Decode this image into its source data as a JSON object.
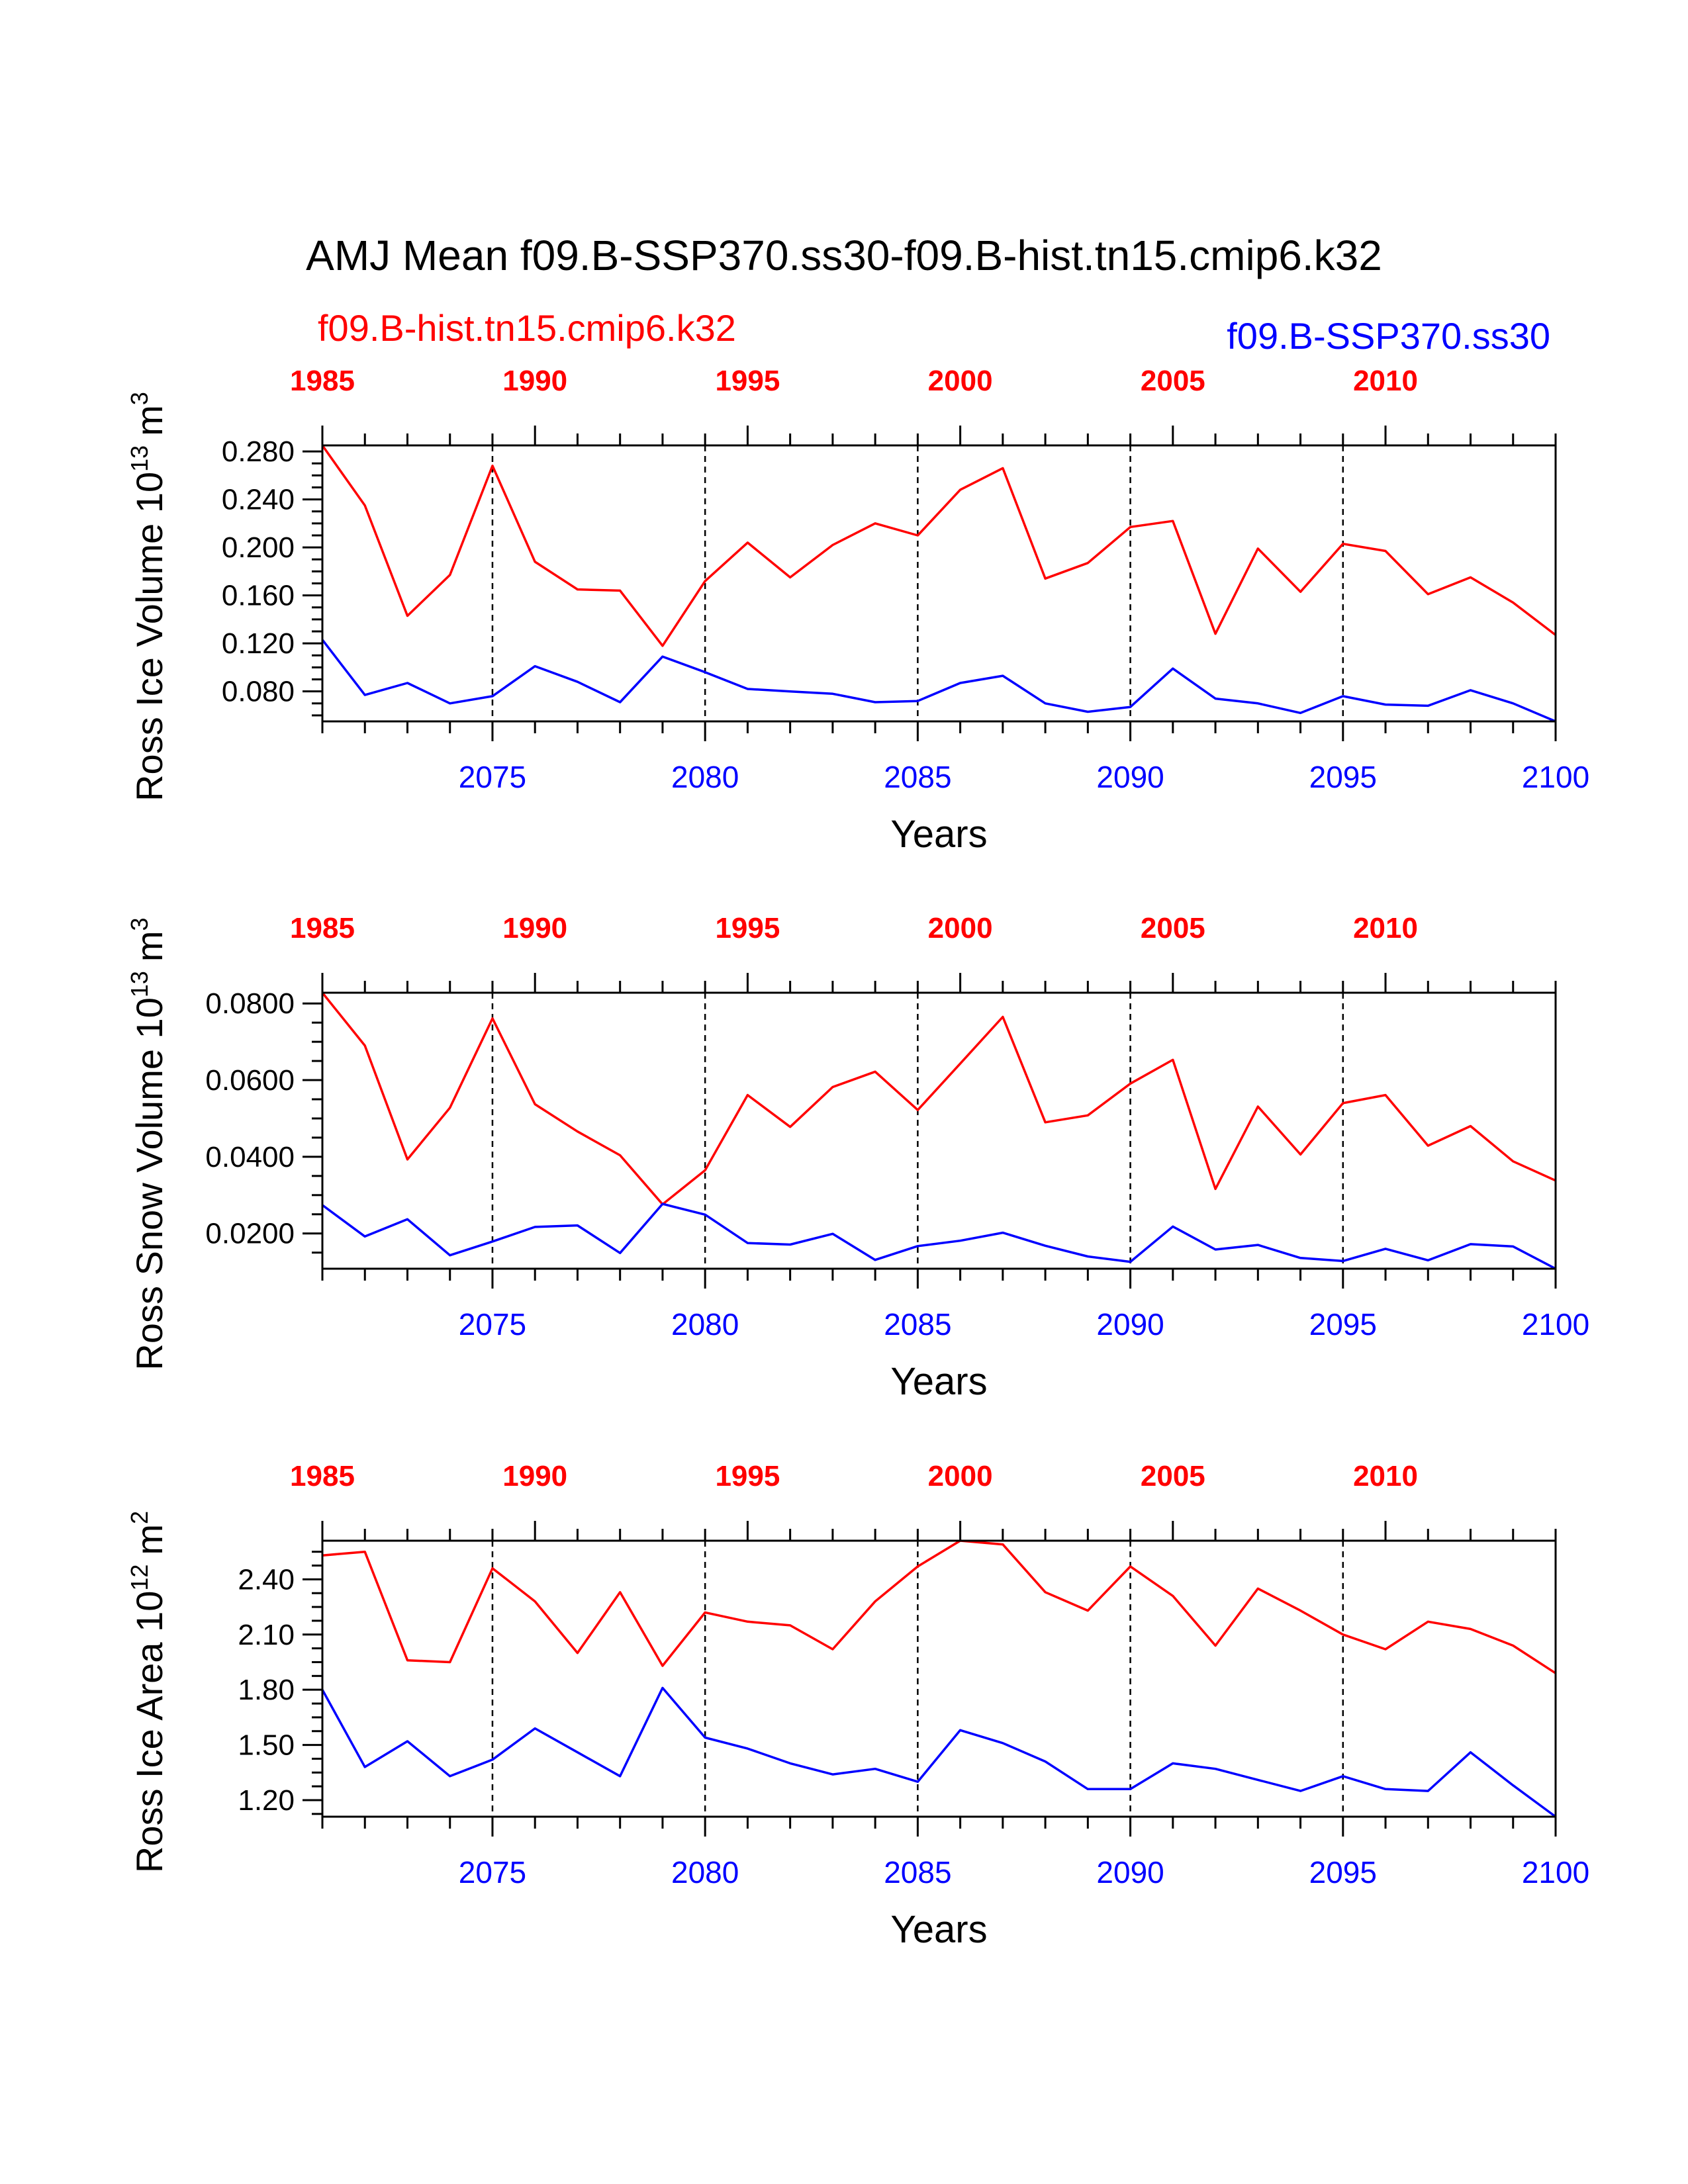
{
  "title": "AMJ Mean f09.B-SSP370.ss30-f09.B-hist.tn15.cmip6.k32",
  "legend": {
    "left_label": "f09.B-hist.tn15.cmip6.k32",
    "right_label": "f09.B-SSP370.ss30"
  },
  "colors": {
    "hist": "#ff0000",
    "ssp": "#0000ff"
  },
  "chart_data": [
    {
      "type": "line",
      "ylabel_main": "Ross Ice Volume 10",
      "ylabel_exp": "13",
      "ylabel_unit": "m",
      "ylabel_unit_exp": "3",
      "xlabel": "Years",
      "ylim": [
        0.055,
        0.285
      ],
      "yticks": [
        0.08,
        0.12,
        0.16,
        0.2,
        0.24,
        0.28
      ],
      "yticklabels": [
        "0.080",
        "0.120",
        "0.160",
        "0.200",
        "0.240",
        "0.280"
      ],
      "bottom_axis": {
        "range": [
          2071,
          2100
        ],
        "ticks": [
          2075,
          2080,
          2085,
          2090,
          2095,
          2100
        ]
      },
      "top_axis": {
        "range": [
          1985,
          2014
        ],
        "ticks": [
          1985,
          1990,
          1995,
          2000,
          2005,
          2010
        ]
      },
      "series": [
        {
          "name": "f09.B-hist.tn15.cmip6.k32",
          "color": "#ff0000",
          "axis": "top",
          "x": [
            1985,
            1986,
            1987,
            1988,
            1989,
            1990,
            1991,
            1992,
            1993,
            1994,
            1995,
            1996,
            1997,
            1998,
            1999,
            2000,
            2001,
            2002,
            2003,
            2004,
            2005,
            2006,
            2007,
            2008,
            2009,
            2010,
            2011,
            2012,
            2013,
            2014
          ],
          "values": [
            0.285,
            0.235,
            0.143,
            0.177,
            0.268,
            0.188,
            0.165,
            0.164,
            0.118,
            0.172,
            0.204,
            0.175,
            0.202,
            0.22,
            0.21,
            0.248,
            0.266,
            0.174,
            0.187,
            0.217,
            0.222,
            0.128,
            0.199,
            0.163,
            0.203,
            0.197,
            0.161,
            0.175,
            0.154,
            0.127
          ]
        },
        {
          "name": "f09.B-SSP370.ss30",
          "color": "#0000ff",
          "axis": "bottom",
          "x": [
            2071,
            2072,
            2073,
            2074,
            2075,
            2076,
            2077,
            2078,
            2079,
            2080,
            2081,
            2082,
            2083,
            2084,
            2085,
            2086,
            2087,
            2088,
            2089,
            2090,
            2091,
            2092,
            2093,
            2094,
            2095,
            2096,
            2097,
            2098,
            2099,
            2100
          ],
          "values": [
            0.123,
            0.077,
            0.087,
            0.07,
            0.076,
            0.101,
            0.088,
            0.071,
            0.109,
            0.096,
            0.082,
            0.08,
            0.078,
            0.071,
            0.072,
            0.087,
            0.093,
            0.07,
            0.063,
            0.067,
            0.099,
            0.074,
            0.07,
            0.062,
            0.076,
            0.069,
            0.068,
            0.081,
            0.07,
            0.055
          ]
        }
      ]
    },
    {
      "type": "line",
      "ylabel_main": "Ross Snow Volume 10",
      "ylabel_exp": "13",
      "ylabel_unit": "m",
      "ylabel_unit_exp": "3",
      "xlabel": "Years",
      "ylim": [
        0.0108,
        0.0828
      ],
      "yticks": [
        0.02,
        0.04,
        0.06,
        0.08
      ],
      "yticklabels": [
        "0.0200",
        "0.0400",
        "0.0600",
        "0.0800"
      ],
      "bottom_axis": {
        "range": [
          2071,
          2100
        ],
        "ticks": [
          2075,
          2080,
          2085,
          2090,
          2095,
          2100
        ]
      },
      "top_axis": {
        "range": [
          1985,
          2014
        ],
        "ticks": [
          1985,
          1990,
          1995,
          2000,
          2005,
          2010
        ]
      },
      "series": [
        {
          "name": "f09.B-hist.tn15.cmip6.k32",
          "color": "#ff0000",
          "axis": "top",
          "x": [
            1985,
            1986,
            1987,
            1988,
            1989,
            1990,
            1991,
            1992,
            1993,
            1994,
            1995,
            1996,
            1997,
            1998,
            1999,
            2000,
            2001,
            2002,
            2003,
            2004,
            2005,
            2006,
            2007,
            2008,
            2009,
            2010,
            2011,
            2012,
            2013,
            2014
          ],
          "values": [
            0.0828,
            0.069,
            0.0393,
            0.0528,
            0.0761,
            0.0537,
            0.0466,
            0.0404,
            0.0276,
            0.0365,
            0.0561,
            0.0478,
            0.0582,
            0.0622,
            0.0522,
            0.0643,
            0.0765,
            0.049,
            0.0508,
            0.0591,
            0.0653,
            0.0316,
            0.0531,
            0.0406,
            0.054,
            0.0561,
            0.0429,
            0.048,
            0.0388,
            0.0338
          ]
        },
        {
          "name": "f09.B-SSP370.ss30",
          "color": "#0000ff",
          "axis": "bottom",
          "x": [
            2071,
            2072,
            2073,
            2074,
            2075,
            2076,
            2077,
            2078,
            2079,
            2080,
            2081,
            2082,
            2083,
            2084,
            2085,
            2086,
            2087,
            2088,
            2089,
            2090,
            2091,
            2092,
            2093,
            2094,
            2095,
            2096,
            2097,
            2098,
            2099,
            2100
          ],
          "values": [
            0.0274,
            0.0192,
            0.0237,
            0.0143,
            0.0179,
            0.0217,
            0.0221,
            0.0149,
            0.0277,
            0.0249,
            0.0175,
            0.0171,
            0.0199,
            0.0131,
            0.0167,
            0.0181,
            0.0202,
            0.0168,
            0.014,
            0.0126,
            0.0218,
            0.0158,
            0.017,
            0.0136,
            0.0128,
            0.016,
            0.013,
            0.0172,
            0.0166,
            0.0108
          ]
        }
      ]
    },
    {
      "type": "line",
      "ylabel_main": "Ross Ice Area 10",
      "ylabel_exp": "12",
      "ylabel_unit": "m",
      "ylabel_unit_exp": "2",
      "xlabel": "Years",
      "ylim": [
        1.11,
        2.61
      ],
      "yticks": [
        1.2,
        1.5,
        1.8,
        2.1,
        2.4
      ],
      "yticklabels": [
        "1.20",
        "1.50",
        "1.80",
        "2.10",
        "2.40"
      ],
      "bottom_axis": {
        "range": [
          2071,
          2100
        ],
        "ticks": [
          2075,
          2080,
          2085,
          2090,
          2095,
          2100
        ]
      },
      "top_axis": {
        "range": [
          1985,
          2014
        ],
        "ticks": [
          1985,
          1990,
          1995,
          2000,
          2005,
          2010
        ]
      },
      "series": [
        {
          "name": "f09.B-hist.tn15.cmip6.k32",
          "color": "#ff0000",
          "axis": "top",
          "x": [
            1985,
            1986,
            1987,
            1988,
            1989,
            1990,
            1991,
            1992,
            1993,
            1994,
            1995,
            1996,
            1997,
            1998,
            1999,
            2000,
            2001,
            2002,
            2003,
            2004,
            2005,
            2006,
            2007,
            2008,
            2009,
            2010,
            2011,
            2012,
            2013,
            2014
          ],
          "values": [
            2.53,
            2.55,
            1.96,
            1.95,
            2.46,
            2.28,
            2.0,
            2.33,
            1.93,
            2.22,
            2.17,
            2.15,
            2.02,
            2.28,
            2.47,
            2.61,
            2.59,
            2.33,
            2.23,
            2.47,
            2.31,
            2.04,
            2.35,
            2.23,
            2.1,
            2.02,
            2.17,
            2.13,
            2.04,
            1.89
          ]
        },
        {
          "name": "f09.B-SSP370.ss30",
          "color": "#0000ff",
          "axis": "bottom",
          "x": [
            2071,
            2072,
            2073,
            2074,
            2075,
            2076,
            2077,
            2078,
            2079,
            2080,
            2081,
            2082,
            2083,
            2084,
            2085,
            2086,
            2087,
            2088,
            2089,
            2090,
            2091,
            2092,
            2093,
            2094,
            2095,
            2096,
            2097,
            2098,
            2099,
            2100
          ],
          "values": [
            1.8,
            1.38,
            1.52,
            1.33,
            1.42,
            1.59,
            1.46,
            1.33,
            1.81,
            1.54,
            1.48,
            1.4,
            1.34,
            1.37,
            1.3,
            1.58,
            1.51,
            1.41,
            1.26,
            1.26,
            1.4,
            1.37,
            1.31,
            1.25,
            1.33,
            1.26,
            1.25,
            1.46,
            1.28,
            1.11
          ]
        }
      ]
    }
  ]
}
